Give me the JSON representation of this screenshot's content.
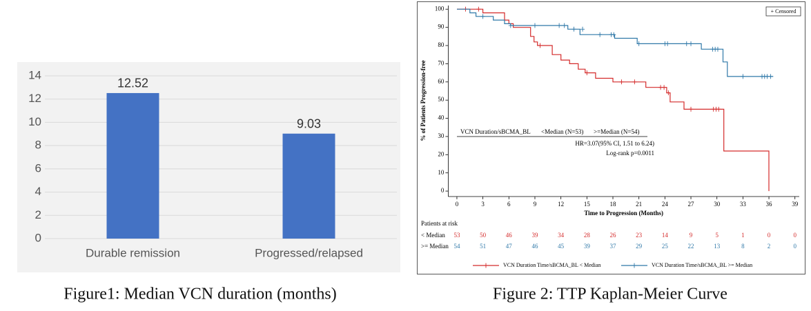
{
  "chart_data": [
    {
      "type": "bar",
      "caption": "Figure1: Median VCN duration (months)",
      "categories": [
        "Durable remission",
        "Progressed/relapsed"
      ],
      "values": [
        12.52,
        9.03
      ],
      "color": "#4472c4",
      "ylim": [
        0,
        14
      ],
      "yticks": [
        0,
        2,
        4,
        6,
        8,
        10,
        12,
        14
      ],
      "grid": true
    },
    {
      "type": "step",
      "caption": "Figure 2: TTP Kaplan-Meier Curve",
      "xlabel": "Time to Progression (Months)",
      "ylabel": "% of Patients Progression-free",
      "xlim": [
        -1,
        39.5
      ],
      "ylim": [
        -3,
        102
      ],
      "xticks": [
        0,
        3,
        6,
        9,
        12,
        15,
        18,
        21,
        24,
        27,
        30,
        33,
        36,
        39
      ],
      "yticks": [
        0,
        10,
        20,
        30,
        40,
        50,
        60,
        70,
        80,
        90,
        100
      ],
      "censored_legend": "+ Censored",
      "annotations": [
        "VCN Duration/sBCMA_BL",
        "<Median (N=53)",
        ">=Median (N=54)",
        "HR=3.07(95% CI, 1.51 to 6.24)",
        "Log-rank p=0.0011"
      ],
      "series": [
        {
          "name": "VCN Duration Time/sBCMA_BL < Median",
          "color": "#d42a2a",
          "x": [
            0,
            3,
            3,
            5.5,
            5.5,
            6,
            6,
            6.5,
            6.5,
            8.5,
            8.5,
            8.9,
            8.9,
            9.3,
            9.3,
            11,
            11,
            12,
            12,
            13,
            13,
            14,
            14,
            14.8,
            14.8,
            16,
            16,
            18,
            18,
            21.8,
            21.8,
            24.2,
            24.2,
            24.6,
            24.6,
            26.2,
            26.2,
            30.8,
            30.8,
            36,
            36
          ],
          "values": [
            100,
            100,
            98,
            98,
            94,
            94,
            92,
            92,
            90,
            90,
            85,
            85,
            82,
            82,
            80,
            80,
            75,
            75,
            72,
            72,
            70,
            70,
            67,
            67,
            65,
            65,
            62,
            62,
            60,
            60,
            57,
            57,
            54,
            54,
            49,
            49,
            45,
            45,
            22,
            22,
            0
          ],
          "censored_x": [
            1,
            2.5,
            9.6,
            15,
            19,
            20.5,
            23.5,
            23.9,
            24.4,
            27,
            29.6,
            29.9,
            30.2
          ],
          "censored_y": [
            100,
            100,
            80,
            65,
            60,
            60,
            57,
            57,
            54,
            45,
            45,
            45,
            45
          ]
        },
        {
          "name": "VCN Duration Time/sBCMA_BL >= Median",
          "color": "#2f78a8",
          "x": [
            0,
            1.5,
            1.5,
            2.2,
            2.2,
            4.2,
            4.2,
            5.5,
            5.5,
            6.2,
            6.2,
            12.8,
            12.8,
            14.2,
            14.2,
            18.2,
            18.2,
            20.8,
            20.8,
            28.2,
            28.2,
            30.7,
            30.7,
            31.2,
            31.2,
            36.5
          ],
          "values": [
            100,
            100,
            98,
            98,
            96,
            96,
            94,
            94,
            92,
            92,
            91,
            91,
            89,
            89,
            86,
            86,
            84,
            84,
            81,
            81,
            78,
            78,
            71,
            71,
            63,
            63
          ],
          "censored_x": [
            3,
            6.2,
            9,
            11.8,
            12.4,
            13.5,
            14.5,
            16.5,
            17.8,
            18.1,
            21,
            24,
            24.3,
            26.5,
            27,
            29.5,
            29.8,
            30.1,
            33,
            35.2,
            35.5,
            35.8,
            36.2
          ],
          "censored_y": [
            96,
            91,
            91,
            91,
            91,
            89,
            89,
            86,
            86,
            86,
            81,
            81,
            81,
            81,
            81,
            78,
            78,
            78,
            63,
            63,
            63,
            63,
            63
          ]
        }
      ],
      "at_risk": {
        "title": "Patients at risk",
        "rows": [
          {
            "label": "< Median",
            "color": "#d42a2a",
            "values": [
              53,
              50,
              46,
              39,
              34,
              28,
              26,
              23,
              14,
              9,
              5,
              1,
              0,
              0
            ]
          },
          {
            "label": ">= Median",
            "color": "#2f78a8",
            "values": [
              54,
              51,
              47,
              46,
              45,
              39,
              37,
              29,
              25,
              22,
              13,
              8,
              2,
              0
            ]
          }
        ]
      }
    }
  ]
}
